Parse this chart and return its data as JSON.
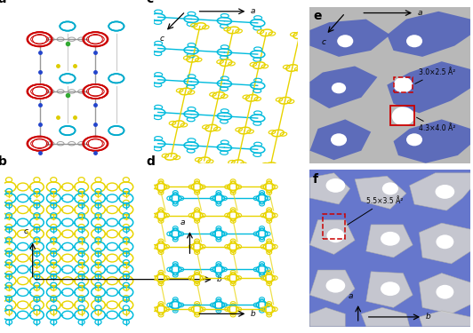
{
  "figure_size": [
    5.32,
    3.75
  ],
  "dpi": 100,
  "background_color": "#ffffff",
  "panel_label_fontsize": 10,
  "yellow": "#e8d400",
  "cyan": "#00bbdd",
  "red": "#cc0000",
  "gray_bond": "#999999",
  "blue_atom": "#2244cc",
  "green_atom": "#33aa33",
  "cyan_atom": "#00bbcc",
  "yellow_atom": "#ddaa00",
  "pore_gray_bg": "#aaaaaa",
  "pore_blue_channel": "#5566bb",
  "pore_blue_f": "#6677cc",
  "annot_fontsize": 6.0,
  "arrow_fontsize": 6.5,
  "panels": {
    "a": [
      0.01,
      0.51,
      0.295,
      0.47
    ],
    "b": [
      0.01,
      0.02,
      0.295,
      0.47
    ],
    "c": [
      0.325,
      0.51,
      0.305,
      0.47
    ],
    "d": [
      0.325,
      0.02,
      0.305,
      0.47
    ],
    "e": [
      0.655,
      0.51,
      0.34,
      0.47
    ],
    "f": [
      0.655,
      0.02,
      0.34,
      0.47
    ]
  }
}
